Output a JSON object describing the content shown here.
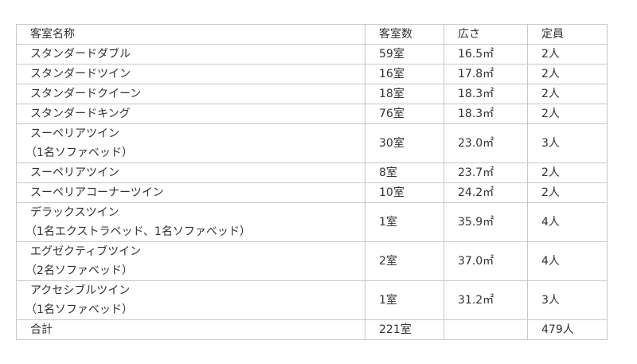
{
  "header": {
    "name": "客室名称",
    "rooms": "客室数",
    "area": "広さ",
    "capacity": "定員"
  },
  "rows": [
    {
      "name": "スタンダードダブル",
      "sub": "",
      "rooms": "59室",
      "area": "16.5㎡",
      "capacity": "2人"
    },
    {
      "name": "スタンダードツイン",
      "sub": "",
      "rooms": "16室",
      "area": "17.8㎡",
      "capacity": "2人"
    },
    {
      "name": "スタンダードクイーン",
      "sub": "",
      "rooms": "18室",
      "area": "18.3㎡",
      "capacity": "2人"
    },
    {
      "name": "スタンダードキング",
      "sub": "",
      "rooms": "76室",
      "area": "18.3㎡",
      "capacity": "2人"
    },
    {
      "name": "スーペリアツイン",
      "sub": "（1名ソファベッド）",
      "rooms": "30室",
      "area": "23.0㎡",
      "capacity": "3人"
    },
    {
      "name": "スーペリアツイン",
      "sub": "",
      "rooms": "8室",
      "area": "23.7㎡",
      "capacity": "2人"
    },
    {
      "name": "スーペリアコーナーツイン",
      "sub": "",
      "rooms": "10室",
      "area": "24.2㎡",
      "capacity": "2人"
    },
    {
      "name": "デラックスツイン",
      "sub": "（1名エクストラベッド、1名ソファベッド）",
      "rooms": "1室",
      "area": "35.9㎡",
      "capacity": "4人"
    },
    {
      "name": "エグゼクティブツイン",
      "sub": "（2名ソファベッド）",
      "rooms": "2室",
      "area": "37.0㎡",
      "capacity": "4人"
    },
    {
      "name": "アクセシブルツイン",
      "sub": "（1名ソファベッド）",
      "rooms": "1室",
      "area": "31.2㎡",
      "capacity": "3人"
    }
  ],
  "total": {
    "name": "合計",
    "rooms": "221室",
    "area": "",
    "capacity": "479人"
  }
}
